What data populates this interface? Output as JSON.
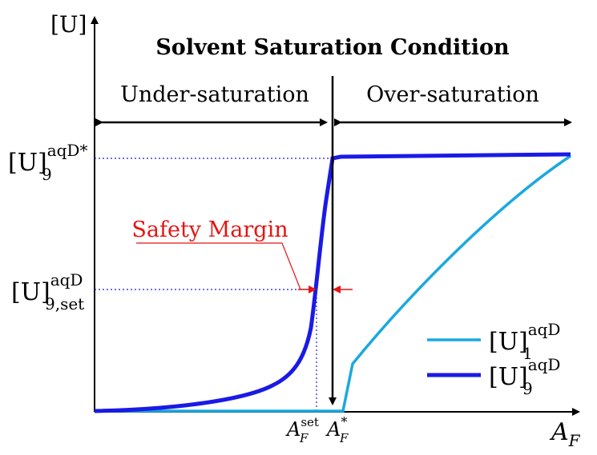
{
  "title": "Solvent Saturation Condition",
  "regions": {
    "left_label": "Under-saturation",
    "right_label": "Over-saturation"
  },
  "axes": {
    "y_label": "[U]",
    "x_label_base": "A",
    "x_label_sub": "F"
  },
  "y_ticks": {
    "top_base": "[U]",
    "top_sup": "aqD*",
    "top_sub": "9",
    "mid_base": "[U]",
    "mid_sup": "aqD",
    "mid_sub": "9,set"
  },
  "x_ticks": {
    "set_base": "A",
    "set_sup": "set",
    "set_sub": "F",
    "star_base": "A",
    "star_sup": "*",
    "star_sub": "F"
  },
  "annotation": {
    "safety_margin": "Safety Margin"
  },
  "legend": {
    "series1_base": "[U]",
    "series1_sup": "aqD",
    "series1_sub": "1",
    "series9_base": "[U]",
    "series9_sup": "aqD",
    "series9_sub": "9"
  },
  "colors": {
    "series1": "#1ba8e0",
    "series9": "#1a1ae6",
    "annotation": "#e31515",
    "guide": "#1a1ae6",
    "axis": "#000000"
  }
}
